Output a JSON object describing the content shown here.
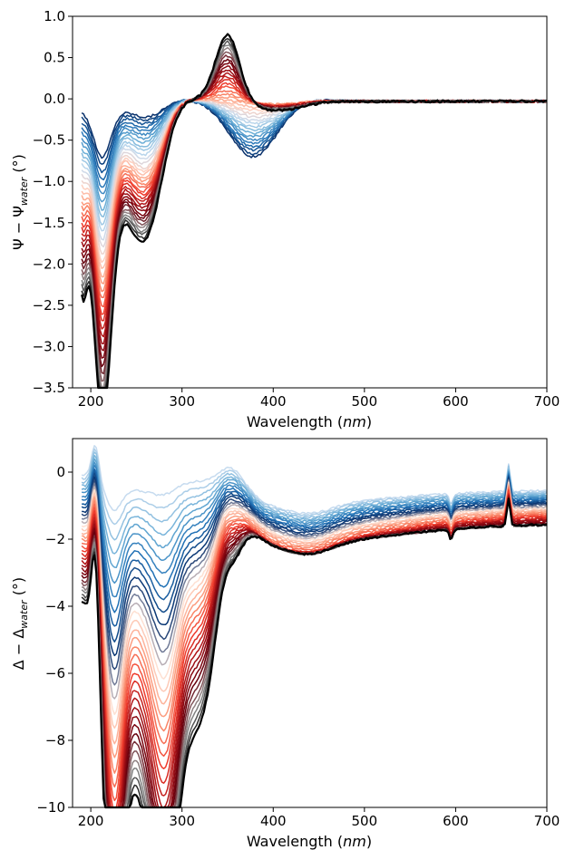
{
  "chart_data": [
    {
      "type": "line",
      "xlabel": "Wavelength (nm)",
      "ylabel": "Ψ − Ψwater (°)",
      "xlim": [
        180,
        700
      ],
      "ylim": [
        -3.5,
        1.0
      ],
      "xticks": [
        "200",
        "300",
        "400",
        "500",
        "600",
        "700"
      ],
      "yticks": [
        "1.0",
        "0.5",
        "0.0",
        "−0.5",
        "−1.0",
        "−1.5",
        "−2.0",
        "−2.5",
        "−3.0",
        "−3.5"
      ],
      "grid": false,
      "series_count": 36,
      "colormap": "blue → light → red → black",
      "colors": [
        "#08306b",
        "#2171b5",
        "#6baed6",
        "#c6dbef",
        "#fdd0c0",
        "#fc9272",
        "#ef3b2c",
        "#a50f15",
        "#67000d",
        "#969696",
        "#000000"
      ],
      "series_shape": {
        "min_at": 212,
        "first_series_min": -0.65,
        "last_series_min": -3.28,
        "shoulder_at": 265,
        "peak_at": 350,
        "first_series_peak": -0.7,
        "last_series_peak": 0.8,
        "tail_value": -0.03
      }
    },
    {
      "type": "line",
      "xlabel": "Wavelength (nm)",
      "ylabel": "Δ − Δwater (°)",
      "xlim": [
        180,
        700
      ],
      "ylim": [
        -10,
        1
      ],
      "xticks": [
        "200",
        "300",
        "400",
        "500",
        "600",
        "700"
      ],
      "yticks": [
        "0",
        "−2",
        "−4",
        "−6",
        "−8",
        "−10"
      ],
      "grid": false,
      "series_count": 36,
      "colormap": "light blue → dark blue → light red → dark red → black",
      "colors": [
        "#c6dbef",
        "#6baed6",
        "#2171b5",
        "#08306b",
        "#fee0d2",
        "#fc9272",
        "#ef3b2c",
        "#a50f15",
        "#67000d",
        "#969696",
        "#000000"
      ],
      "series_shape": {
        "sharp_min_at": 225,
        "last_series_min": -9.6,
        "second_min_at": 282,
        "peak_at": 352,
        "plateau_at": 440,
        "spike_at": 658,
        "tail_value_at_700": -1.4
      }
    }
  ],
  "text": {
    "p1_xlabel_pre": "Wavelength (",
    "p1_xlabel_em": "nm",
    "p1_xlabel_post": ")",
    "p1_ylabel_pre": "Ψ − Ψ",
    "p1_ylabel_sub": "water",
    "p1_ylabel_post": " (°)",
    "p2_xlabel_pre": "Wavelength (",
    "p2_xlabel_em": "nm",
    "p2_xlabel_post": ")",
    "p2_ylabel_pre": "Δ − Δ",
    "p2_ylabel_sub": "water",
    "p2_ylabel_post": " (°)"
  }
}
